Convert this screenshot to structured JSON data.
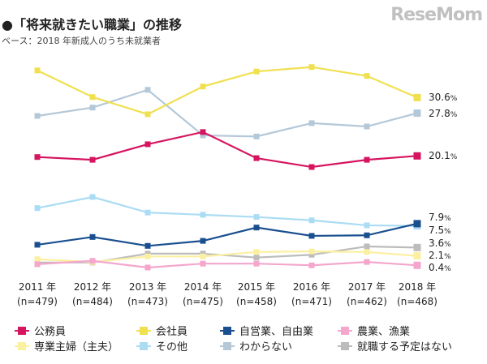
{
  "chart_data": {
    "type": "line",
    "title": "●「将来就きたい職業」の推移",
    "subtitle": "ベース：2018 年新成人のうち未就業者",
    "categories": [
      {
        "year": "2011 年",
        "n": "(n=479)"
      },
      {
        "year": "2012 年",
        "n": "(n=484)"
      },
      {
        "year": "2013 年",
        "n": "(n=473)"
      },
      {
        "year": "2014 年",
        "n": "(n=475)"
      },
      {
        "year": "2015 年",
        "n": "(n=458)"
      },
      {
        "year": "2016 年",
        "n": "(n=471)"
      },
      {
        "year": "2017 年",
        "n": "(n=462)"
      },
      {
        "year": "2018 年",
        "n": "(n=468)"
      }
    ],
    "ylim": [
      0,
      40
    ],
    "grid": false,
    "legend_placement": "bottom",
    "unit": "%",
    "series": [
      {
        "name": "わからない",
        "color": "#b4c8d8",
        "values": [
          27.3,
          28.8,
          32.0,
          23.8,
          23.6,
          26.0,
          25.4,
          27.8
        ],
        "end_label": "27.8"
      },
      {
        "name": "その他",
        "color": "#aadcf4",
        "values": [
          10.7,
          12.7,
          9.9,
          9.5,
          9.1,
          8.5,
          7.6,
          7.5
        ],
        "end_label": "7.5"
      },
      {
        "name": "就職する予定はない",
        "color": "#bcbcbc",
        "values": [
          0.9,
          0.9,
          2.5,
          2.5,
          1.8,
          2.3,
          3.8,
          3.6
        ],
        "end_label": "3.6"
      },
      {
        "name": "専業主婦（主夫）",
        "color": "#fbf0a0",
        "values": [
          1.5,
          1.0,
          2.0,
          2.0,
          2.8,
          2.9,
          2.8,
          2.1
        ],
        "end_label": "2.1"
      },
      {
        "name": "農業、漁業",
        "color": "#f4a6cc",
        "values": [
          0.6,
          1.2,
          0.0,
          0.7,
          0.7,
          0.4,
          1.0,
          0.4
        ],
        "end_label": "0.4"
      },
      {
        "name": "自営業、自由業",
        "color": "#1a4f8f",
        "values": [
          4.1,
          5.5,
          3.9,
          4.8,
          7.2,
          5.7,
          5.8,
          7.9
        ],
        "end_label": "7.9"
      },
      {
        "name": "公務員",
        "color": "#d6145f",
        "values": [
          19.9,
          19.4,
          22.2,
          24.4,
          19.7,
          18.1,
          19.4,
          20.1
        ],
        "end_label": "20.1"
      },
      {
        "name": "会社員",
        "color": "#f0e050",
        "values": [
          35.5,
          30.7,
          27.6,
          32.6,
          35.3,
          36.1,
          34.5,
          30.6
        ],
        "end_label": "30.6"
      }
    ],
    "legend_order": [
      "公務員",
      "会社員",
      "自営業、自由業",
      "農業、漁業",
      "専業主婦（主夫）",
      "その他",
      "わからない",
      "就職する予定はない"
    ]
  },
  "watermark": "ReseMom"
}
